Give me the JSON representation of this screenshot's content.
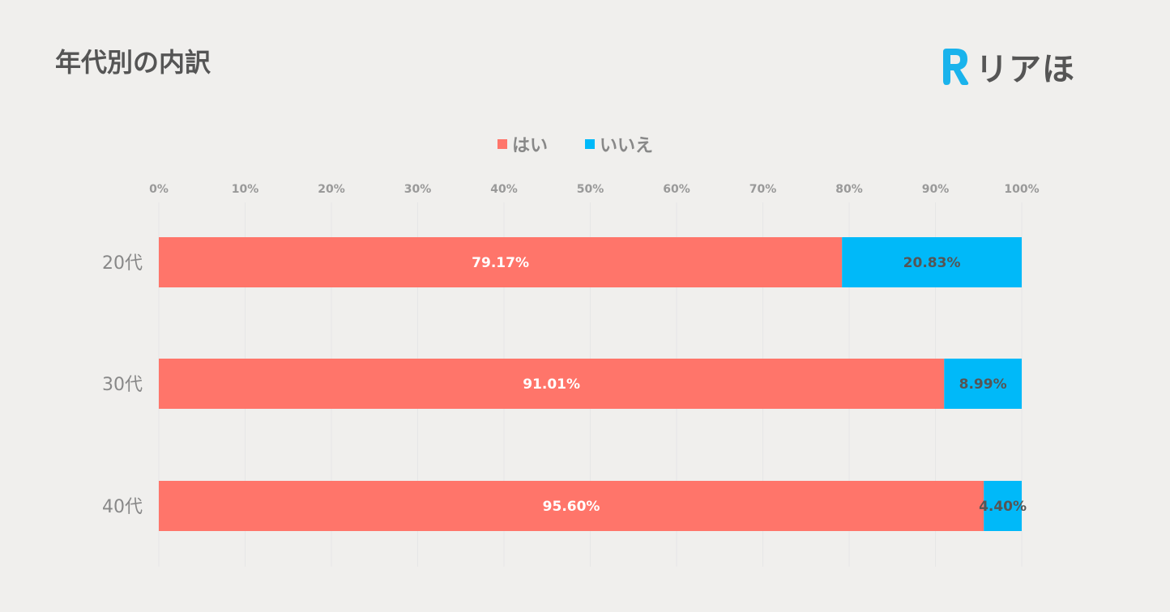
{
  "title": "年代別の内訳",
  "logo": {
    "text": "リアほ",
    "mark": "R",
    "mark_color": "#1ab3ec"
  },
  "chart_data": {
    "type": "bar",
    "orientation": "horizontal",
    "stacked": true,
    "title": "年代別の内訳",
    "categories": [
      "20代",
      "30代",
      "40代"
    ],
    "series": [
      {
        "name": "はい",
        "color": "#ff756a",
        "values": [
          79.17,
          91.01,
          95.6
        ],
        "labels": [
          "79.17%",
          "91.01%",
          "95.60%"
        ]
      },
      {
        "name": "いいえ",
        "color": "#00b9f9",
        "values": [
          20.83,
          8.99,
          4.4
        ],
        "labels": [
          "20.83%",
          "8.99%",
          "4.40%"
        ]
      }
    ],
    "xlim": [
      0,
      100
    ],
    "xticks": [
      "0%",
      "10%",
      "20%",
      "30%",
      "40%",
      "50%",
      "60%",
      "70%",
      "80%",
      "90%",
      "100%"
    ],
    "grid": true,
    "legend_position": "top-center"
  }
}
